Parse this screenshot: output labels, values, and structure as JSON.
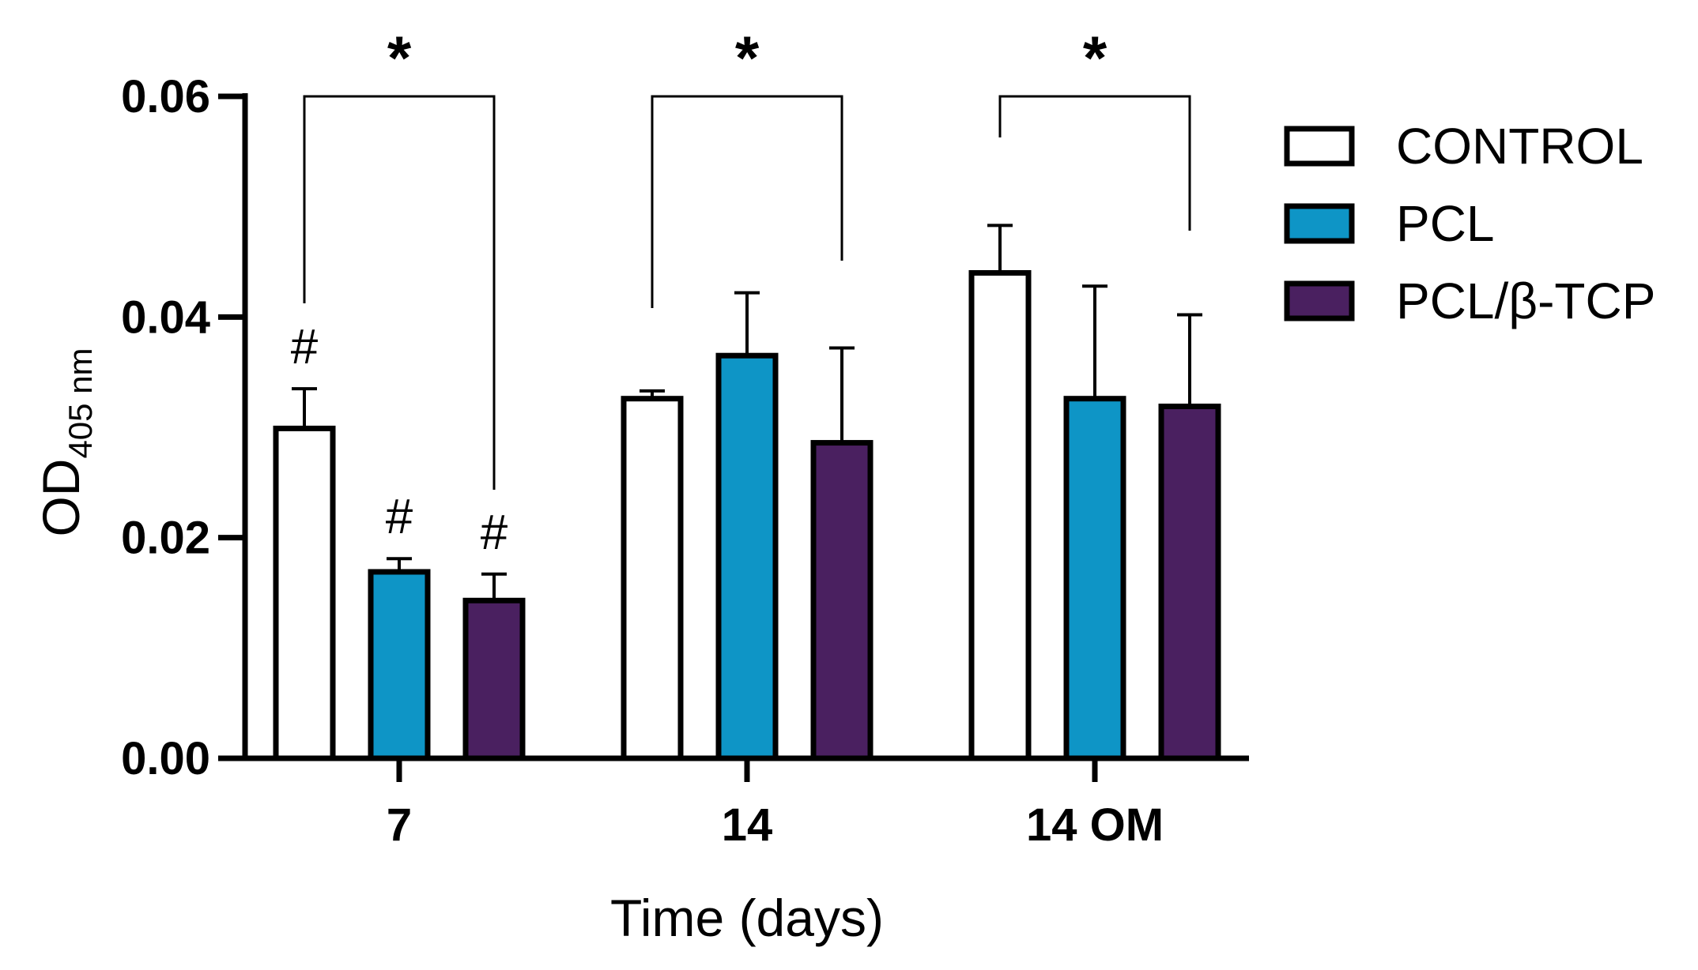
{
  "chart_data": {
    "type": "bar",
    "title": "",
    "xlabel": "Time (days)",
    "ylabel": {
      "main": "OD",
      "subscript": "405 nm"
    },
    "ylim": [
      0,
      0.06
    ],
    "yticks": [
      "0.00",
      "0.02",
      "0.04",
      "0.06"
    ],
    "ytick_values": [
      0,
      0.02,
      0.04,
      0.06
    ],
    "grid": false,
    "legend_position": "right",
    "categories": [
      "7",
      "14",
      "14 OM"
    ],
    "series": [
      {
        "name": "CONTROL",
        "color": "#ffffff",
        "values": [
          0.0299,
          0.0326,
          0.044
        ],
        "errors": [
          0.0036,
          0.0007,
          0.0043
        ]
      },
      {
        "name": "PCL",
        "color": "#0e95c6",
        "values": [
          0.0169,
          0.0365,
          0.0326
        ],
        "errors": [
          0.0012,
          0.0057,
          0.0102
        ]
      },
      {
        "name": "PCL/β-TCP",
        "color": "#4a2060",
        "values": [
          0.0143,
          0.0286,
          0.0319
        ],
        "errors": [
          0.0024,
          0.0086,
          0.0083
        ]
      }
    ],
    "annotations": {
      "significance": [
        {
          "category": "7",
          "label": "*"
        },
        {
          "category": "14",
          "label": "*"
        },
        {
          "category": "14 OM",
          "label": "*"
        }
      ],
      "hash_marks": [
        {
          "category": "7",
          "series": "CONTROL",
          "label": "#"
        },
        {
          "category": "7",
          "series": "PCL",
          "label": "#"
        },
        {
          "category": "7",
          "series": "PCL/β-TCP",
          "label": "#"
        }
      ]
    }
  }
}
